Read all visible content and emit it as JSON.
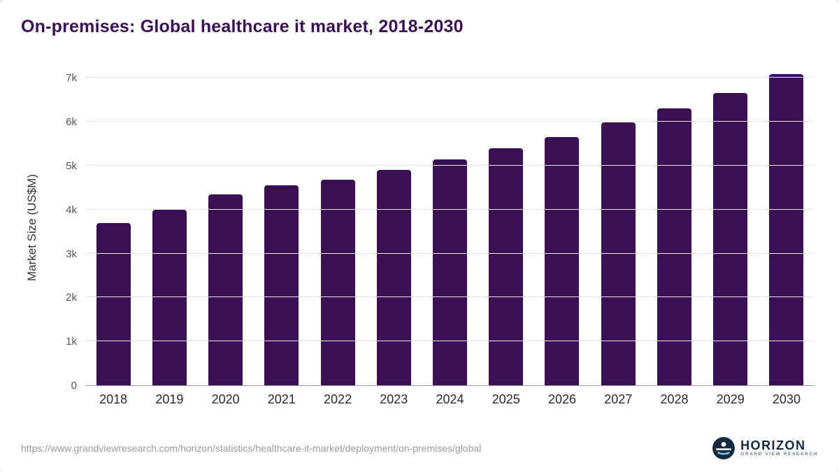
{
  "chart_data": {
    "type": "bar",
    "title": "On-premises: Global healthcare it market, 2018-2030",
    "xlabel": "",
    "ylabel": "Market Size (US$M)",
    "ylim": [
      0,
      7000
    ],
    "grid": "horizontal",
    "legend": "none",
    "categories": [
      "2018",
      "2019",
      "2020",
      "2021",
      "2022",
      "2023",
      "2024",
      "2025",
      "2026",
      "2027",
      "2028",
      "2029",
      "2030"
    ],
    "values": [
      3700,
      4000,
      4350,
      4550,
      4680,
      4900,
      5150,
      5400,
      5650,
      5980,
      6300,
      6650,
      7080
    ],
    "yticks": [
      {
        "value": 0,
        "label": "0"
      },
      {
        "value": 1000,
        "label": "1k"
      },
      {
        "value": 2000,
        "label": "2k"
      },
      {
        "value": 3000,
        "label": "3k"
      },
      {
        "value": 4000,
        "label": "4k"
      },
      {
        "value": 5000,
        "label": "5k"
      },
      {
        "value": 6000,
        "label": "6k"
      },
      {
        "value": 7000,
        "label": "7k"
      }
    ]
  },
  "footer": {
    "source_url": "https://www.grandviewresearch.com/horizon/statistics/healthcare-it-market/deployment/on-premises/global",
    "logo": {
      "name": "HORIZON",
      "subtitle": "GRAND VIEW RESEARCH"
    }
  },
  "colors": {
    "bar": "#3b0f54",
    "title": "#3b0f54",
    "grid": "#e3e3e3",
    "logo_navy": "#16293f"
  }
}
